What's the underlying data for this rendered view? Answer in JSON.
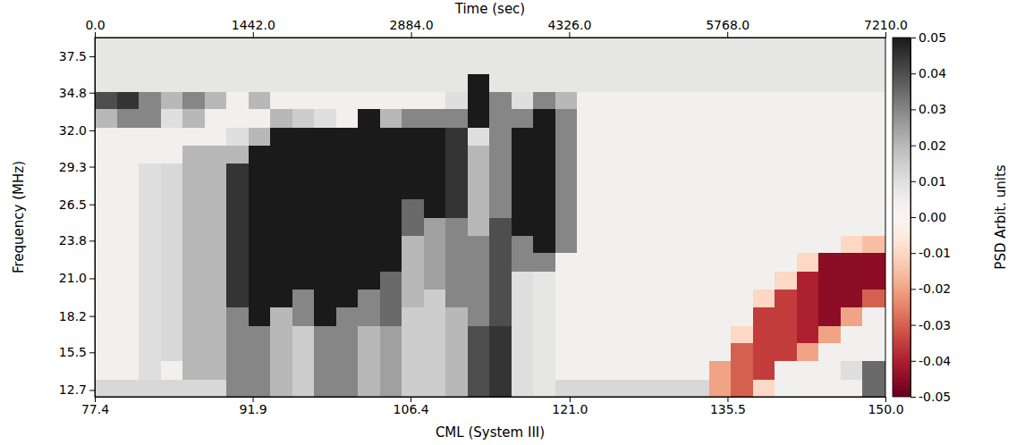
{
  "chart_data": {
    "type": "heatmap",
    "x_label": "Time (sec)",
    "x2_label": "CML (System III)",
    "y_label": "Frequency (MHz)",
    "xlim": [
      0,
      7210
    ],
    "xticks": [
      {
        "value": 0,
        "label": "0.0"
      },
      {
        "value": 1442,
        "label": "1442.0"
      },
      {
        "value": 2884,
        "label": "2884.0"
      },
      {
        "value": 4326,
        "label": "4326.0"
      },
      {
        "value": 5768,
        "label": "5768.0"
      },
      {
        "value": 7210,
        "label": "7210.0"
      }
    ],
    "x2lim": [
      77.4,
      150.0
    ],
    "x2ticks": [
      77.4,
      91.9,
      106.4,
      {
        "value": 121,
        "label": "121.0"
      },
      135.5,
      {
        "value": 150,
        "label": "150.0"
      }
    ],
    "ylim": [
      12.2,
      38.9
    ],
    "yticks": [
      12.7,
      15.5,
      18.2,
      {
        "value": 21,
        "label": "21.0"
      },
      23.8,
      26.5,
      29.3,
      {
        "value": 32,
        "label": "32.0"
      },
      34.8,
      37.5
    ],
    "x_edges": [
      0,
      200,
      400,
      600,
      800,
      1000,
      1200,
      1400,
      1600,
      1800,
      2000,
      2200,
      2400,
      2600,
      2800,
      3000,
      3200,
      3400,
      3600,
      3800,
      4000,
      4200,
      4400,
      4600,
      4800,
      5000,
      5200,
      5400,
      5600,
      5800,
      6000,
      6200,
      6400,
      6600,
      6800,
      7000,
      7210
    ],
    "y_edges": [
      12.2,
      13.5,
      14.9,
      16.2,
      17.5,
      18.9,
      20.2,
      21.5,
      22.9,
      24.2,
      25.5,
      26.9,
      28.2,
      29.6,
      30.9,
      32.2,
      33.6,
      34.9,
      36.2,
      37.6,
      38.9
    ],
    "cells": [
      [
        0.012,
        0.012,
        0.012,
        0.012,
        0.012,
        0.012,
        0.03,
        0.03,
        0.02,
        0.015,
        0.03,
        0.03,
        0.02,
        0.025,
        0.015,
        0.015,
        0.02,
        0.04,
        0.045,
        0.01,
        0.008,
        0.012,
        0.012,
        0.012,
        0.012,
        0.012,
        0.012,
        0.012,
        -0.02,
        -0.03,
        -0.01,
        0.004,
        0.004,
        0.004,
        0.004,
        0.035
      ],
      [
        0.004,
        0.004,
        0.01,
        0.004,
        0.02,
        0.02,
        0.03,
        0.03,
        0.02,
        0.015,
        0.03,
        0.03,
        0.02,
        0.025,
        0.015,
        0.015,
        0.02,
        0.04,
        0.045,
        0.01,
        0.008,
        0.004,
        0.004,
        0.004,
        0.004,
        0.004,
        0.004,
        0.004,
        -0.02,
        -0.03,
        -0.035,
        0.004,
        0.004,
        0.004,
        0.01,
        0.035
      ],
      [
        0.004,
        0.004,
        0.01,
        0.012,
        0.02,
        0.02,
        0.03,
        0.03,
        0.02,
        0.015,
        0.03,
        0.03,
        0.02,
        0.025,
        0.015,
        0.015,
        0.02,
        0.04,
        0.045,
        0.01,
        0.008,
        0.004,
        0.004,
        0.004,
        0.004,
        0.004,
        0.004,
        0.004,
        0.004,
        -0.03,
        -0.035,
        -0.035,
        -0.02,
        0.004,
        0.004,
        0.004
      ],
      [
        0.004,
        0.004,
        0.01,
        0.012,
        0.02,
        0.02,
        0.03,
        0.03,
        0.02,
        0.015,
        0.03,
        0.03,
        0.02,
        0.025,
        0.015,
        0.015,
        0.02,
        0.04,
        0.045,
        0.01,
        0.008,
        0.004,
        0.004,
        0.004,
        0.004,
        0.004,
        0.004,
        0.004,
        0.004,
        -0.01,
        -0.035,
        -0.035,
        -0.04,
        -0.02,
        0.004,
        0.004
      ],
      [
        0.004,
        0.004,
        0.01,
        0.012,
        0.02,
        0.02,
        0.03,
        0.05,
        0.02,
        0.03,
        0.05,
        0.03,
        0.03,
        0.035,
        0.015,
        0.015,
        0.02,
        0.03,
        0.04,
        0.01,
        0.008,
        0.004,
        0.004,
        0.004,
        0.004,
        0.004,
        0.004,
        0.004,
        0.004,
        0.004,
        -0.035,
        -0.035,
        -0.04,
        -0.045,
        -0.02,
        0.004
      ],
      [
        0.004,
        0.004,
        0.01,
        0.012,
        0.02,
        0.02,
        0.045,
        0.05,
        0.05,
        0.03,
        0.05,
        0.05,
        0.03,
        0.035,
        0.02,
        0.015,
        0.03,
        0.03,
        0.04,
        0.01,
        0.008,
        0.004,
        0.004,
        0.004,
        0.004,
        0.004,
        0.004,
        0.004,
        0.004,
        0.004,
        -0.01,
        -0.035,
        -0.04,
        -0.045,
        -0.045,
        -0.03
      ],
      [
        0.004,
        0.004,
        0.01,
        0.012,
        0.02,
        0.02,
        0.045,
        0.05,
        0.05,
        0.05,
        0.05,
        0.05,
        0.05,
        0.035,
        0.02,
        0.025,
        0.03,
        0.03,
        0.04,
        0.01,
        0.008,
        0.004,
        0.004,
        0.004,
        0.004,
        0.004,
        0.004,
        0.004,
        0.004,
        0.004,
        0.004,
        -0.01,
        -0.04,
        -0.045,
        -0.045,
        -0.045
      ],
      [
        0.004,
        0.004,
        0.01,
        0.012,
        0.02,
        0.02,
        0.045,
        0.05,
        0.05,
        0.05,
        0.05,
        0.05,
        0.05,
        0.05,
        0.02,
        0.025,
        0.03,
        0.03,
        0.04,
        0.03,
        0.03,
        0.004,
        0.004,
        0.004,
        0.004,
        0.004,
        0.004,
        0.004,
        0.004,
        0.004,
        0.004,
        0.004,
        -0.01,
        -0.045,
        -0.045,
        -0.045
      ],
      [
        0.004,
        0.004,
        0.01,
        0.012,
        0.02,
        0.02,
        0.045,
        0.05,
        0.05,
        0.05,
        0.05,
        0.05,
        0.05,
        0.05,
        0.02,
        0.025,
        0.03,
        0.03,
        0.04,
        0.03,
        0.05,
        0.03,
        0.004,
        0.004,
        0.004,
        0.004,
        0.004,
        0.004,
        0.004,
        0.004,
        0.004,
        0.004,
        0.004,
        0.004,
        -0.01,
        -0.015
      ],
      [
        0.004,
        0.004,
        0.01,
        0.012,
        0.02,
        0.02,
        0.045,
        0.05,
        0.05,
        0.05,
        0.05,
        0.05,
        0.05,
        0.05,
        0.035,
        0.025,
        0.03,
        0.02,
        0.04,
        0.05,
        0.05,
        0.03,
        0.004,
        0.004,
        0.004,
        0.004,
        0.004,
        0.004,
        0.004,
        0.004,
        0.004,
        0.004,
        0.004,
        0.004,
        0.004,
        0.004
      ],
      [
        0.004,
        0.004,
        0.01,
        0.012,
        0.02,
        0.02,
        0.045,
        0.05,
        0.05,
        0.05,
        0.05,
        0.05,
        0.05,
        0.05,
        0.035,
        0.05,
        0.045,
        0.02,
        0.03,
        0.05,
        0.05,
        0.03,
        0.004,
        0.004,
        0.004,
        0.004,
        0.004,
        0.004,
        0.004,
        0.004,
        0.004,
        0.004,
        0.004,
        0.004,
        0.004,
        0.004
      ],
      [
        0.004,
        0.004,
        0.01,
        0.012,
        0.02,
        0.02,
        0.045,
        0.05,
        0.05,
        0.05,
        0.05,
        0.05,
        0.05,
        0.05,
        0.05,
        0.05,
        0.045,
        0.02,
        0.03,
        0.05,
        0.05,
        0.03,
        0.004,
        0.004,
        0.004,
        0.004,
        0.004,
        0.004,
        0.004,
        0.004,
        0.004,
        0.004,
        0.004,
        0.004,
        0.004,
        0.004
      ],
      [
        0.004,
        0.004,
        0.01,
        0.012,
        0.02,
        0.02,
        0.045,
        0.05,
        0.05,
        0.05,
        0.05,
        0.05,
        0.05,
        0.05,
        0.05,
        0.05,
        0.045,
        0.02,
        0.03,
        0.05,
        0.05,
        0.03,
        0.004,
        0.004,
        0.004,
        0.004,
        0.004,
        0.004,
        0.004,
        0.004,
        0.004,
        0.004,
        0.004,
        0.004,
        0.004,
        0.004
      ],
      [
        0.004,
        0.004,
        0.004,
        0.004,
        0.02,
        0.02,
        0.02,
        0.05,
        0.05,
        0.05,
        0.05,
        0.05,
        0.05,
        0.05,
        0.05,
        0.05,
        0.045,
        0.02,
        0.03,
        0.05,
        0.05,
        0.03,
        0.004,
        0.004,
        0.004,
        0.004,
        0.004,
        0.004,
        0.004,
        0.004,
        0.004,
        0.004,
        0.004,
        0.004,
        0.004,
        0.004
      ],
      [
        0.004,
        0.004,
        0.004,
        0.004,
        0.004,
        0.004,
        0.01,
        0.02,
        0.05,
        0.05,
        0.05,
        0.05,
        0.05,
        0.05,
        0.05,
        0.05,
        0.045,
        0.01,
        0.03,
        0.05,
        0.05,
        0.03,
        0.004,
        0.004,
        0.004,
        0.004,
        0.004,
        0.004,
        0.004,
        0.004,
        0.004,
        0.004,
        0.004,
        0.004,
        0.004,
        0.004
      ],
      [
        0.02,
        0.03,
        0.03,
        0.01,
        0.02,
        0.004,
        0.004,
        0.004,
        0.02,
        0.015,
        0.01,
        0.004,
        0.05,
        0.02,
        0.03,
        0.03,
        0.03,
        0.05,
        0.03,
        0.03,
        0.05,
        0.03,
        0.004,
        0.004,
        0.004,
        0.004,
        0.004,
        0.004,
        0.004,
        0.004,
        0.004,
        0.004,
        0.004,
        0.004,
        0.004,
        0.004
      ],
      [
        0.04,
        0.045,
        0.03,
        0.02,
        0.03,
        0.02,
        0.004,
        0.02,
        0.004,
        0.004,
        0.004,
        0.004,
        0.004,
        0.004,
        0.004,
        0.004,
        0.01,
        0.05,
        0.03,
        0.01,
        0.03,
        0.02,
        0.004,
        0.004,
        0.004,
        0.004,
        0.004,
        0.004,
        0.004,
        0.004,
        0.004,
        0.004,
        0.004,
        0.004,
        0.004,
        0.004
      ],
      [
        0.008,
        0.008,
        0.008,
        0.008,
        0.008,
        0.008,
        0.008,
        0.008,
        0.008,
        0.008,
        0.008,
        0.008,
        0.008,
        0.008,
        0.008,
        0.008,
        0.008,
        0.05,
        0.008,
        0.008,
        0.008,
        0.008,
        0.008,
        0.008,
        0.008,
        0.008,
        0.008,
        0.008,
        0.008,
        0.008,
        0.008,
        0.008,
        0.008,
        0.008,
        0.008,
        0.008
      ],
      [
        0.008,
        0.008,
        0.008,
        0.008,
        0.008,
        0.008,
        0.008,
        0.008,
        0.008,
        0.008,
        0.008,
        0.008,
        0.008,
        0.008,
        0.008,
        0.008,
        0.008,
        0.008,
        0.008,
        0.008,
        0.008,
        0.008,
        0.008,
        0.008,
        0.008,
        0.008,
        0.008,
        0.008,
        0.008,
        0.008,
        0.008,
        0.008,
        0.008,
        0.008,
        0.008,
        0.008
      ],
      [
        0.008,
        0.008,
        0.008,
        0.008,
        0.008,
        0.008,
        0.008,
        0.008,
        0.008,
        0.008,
        0.008,
        0.008,
        0.008,
        0.008,
        0.008,
        0.008,
        0.008,
        0.008,
        0.008,
        0.008,
        0.008,
        0.008,
        0.008,
        0.008,
        0.008,
        0.008,
        0.008,
        0.008,
        0.008,
        0.008,
        0.008,
        0.008,
        0.008,
        0.008,
        0.008,
        0.008
      ]
    ],
    "colorbar": {
      "label": "PSD Arbit. units",
      "lim": [
        -0.05,
        0.05
      ],
      "ticks": [
        0.05,
        0.04,
        0.03,
        0.02,
        0.01,
        {
          "value": 0,
          "label": "0.00"
        },
        -0.01,
        -0.02,
        -0.03,
        -0.04,
        -0.05
      ]
    }
  }
}
